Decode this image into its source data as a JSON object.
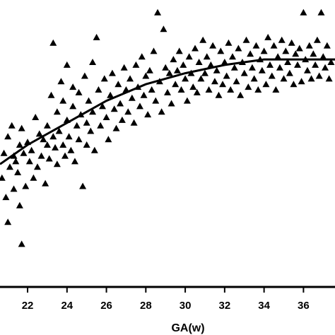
{
  "chart_data": {
    "type": "scatter",
    "xlabel": "GA(w)",
    "ylabel": "",
    "title": "",
    "xlim": [
      20.6,
      37.6
    ],
    "ylim": [
      0,
      1
    ],
    "x_ticks": [
      22,
      24,
      26,
      28,
      30,
      32,
      34,
      36
    ],
    "grid": false,
    "legend": "none",
    "marker": "triangle",
    "colors": {
      "marker": "#000000",
      "fit_line": "#000000",
      "axis": "#000000"
    },
    "series": [
      {
        "points": [
          [
            20.7,
            0.38
          ],
          [
            20.8,
            0.47
          ],
          [
            20.9,
            0.31
          ],
          [
            21.0,
            0.53
          ],
          [
            21.0,
            0.22
          ],
          [
            21.1,
            0.42
          ],
          [
            21.2,
            0.57
          ],
          [
            21.3,
            0.34
          ],
          [
            21.3,
            0.46
          ],
          [
            21.4,
            0.44
          ],
          [
            21.5,
            0.4
          ],
          [
            21.6,
            0.5
          ],
          [
            21.6,
            0.28
          ],
          [
            21.7,
            0.56
          ],
          [
            21.7,
            0.14
          ],
          [
            21.8,
            0.47
          ],
          [
            21.9,
            0.35
          ],
          [
            22.0,
            0.51
          ],
          [
            22.1,
            0.44
          ],
          [
            22.2,
            0.48
          ],
          [
            22.3,
            0.38
          ],
          [
            22.4,
            0.6
          ],
          [
            22.5,
            0.42
          ],
          [
            22.6,
            0.54
          ],
          [
            22.7,
            0.46
          ],
          [
            22.8,
            0.52
          ],
          [
            22.9,
            0.36
          ],
          [
            23.0,
            0.5
          ],
          [
            23.0,
            0.57
          ],
          [
            23.1,
            0.45
          ],
          [
            23.2,
            0.68
          ],
          [
            23.3,
            0.53
          ],
          [
            23.3,
            0.87
          ],
          [
            23.4,
            0.49
          ],
          [
            23.5,
            0.62
          ],
          [
            23.5,
            0.43
          ],
          [
            23.6,
            0.55
          ],
          [
            23.7,
            0.73
          ],
          [
            23.8,
            0.5
          ],
          [
            23.8,
            0.66
          ],
          [
            23.9,
            0.46
          ],
          [
            24.0,
            0.59
          ],
          [
            24.0,
            0.79
          ],
          [
            24.1,
            0.53
          ],
          [
            24.2,
            0.48
          ],
          [
            24.3,
            0.64
          ],
          [
            24.3,
            0.71
          ],
          [
            24.4,
            0.44
          ],
          [
            24.5,
            0.57
          ],
          [
            24.6,
            0.69
          ],
          [
            24.6,
            0.52
          ],
          [
            24.7,
            0.61
          ],
          [
            24.8,
            0.35
          ],
          [
            24.9,
            0.75
          ],
          [
            25.0,
            0.58
          ],
          [
            25.0,
            0.5
          ],
          [
            25.1,
            0.66
          ],
          [
            25.2,
            0.55
          ],
          [
            25.3,
            0.8
          ],
          [
            25.3,
            0.62
          ],
          [
            25.4,
            0.48
          ],
          [
            25.5,
            0.89
          ],
          [
            25.6,
            0.7
          ],
          [
            25.7,
            0.57
          ],
          [
            25.8,
            0.64
          ],
          [
            25.9,
            0.74
          ],
          [
            26.0,
            0.6
          ],
          [
            26.1,
            0.52
          ],
          [
            26.2,
            0.68
          ],
          [
            26.3,
            0.76
          ],
          [
            26.4,
            0.63
          ],
          [
            26.5,
            0.56
          ],
          [
            26.6,
            0.72
          ],
          [
            26.7,
            0.65
          ],
          [
            26.8,
            0.59
          ],
          [
            26.9,
            0.78
          ],
          [
            27.0,
            0.7
          ],
          [
            27.1,
            0.62
          ],
          [
            27.2,
            0.74
          ],
          [
            27.3,
            0.67
          ],
          [
            27.4,
            0.58
          ],
          [
            27.5,
            0.79
          ],
          [
            27.6,
            0.71
          ],
          [
            27.7,
            0.64
          ],
          [
            27.8,
            0.82
          ],
          [
            27.9,
            0.68
          ],
          [
            28.0,
            0.75
          ],
          [
            28.1,
            0.61
          ],
          [
            28.2,
            0.77
          ],
          [
            28.3,
            0.7
          ],
          [
            28.4,
            0.84
          ],
          [
            28.5,
            0.66
          ],
          [
            28.6,
            0.98
          ],
          [
            28.7,
            0.73
          ],
          [
            28.8,
            0.62
          ],
          [
            28.9,
            0.92
          ],
          [
            29.0,
            0.78
          ],
          [
            29.1,
            0.69
          ],
          [
            29.2,
            0.76
          ],
          [
            29.3,
            0.65
          ],
          [
            29.4,
            0.81
          ],
          [
            29.5,
            0.72
          ],
          [
            29.6,
            0.77
          ],
          [
            29.7,
            0.84
          ],
          [
            29.8,
            0.7
          ],
          [
            29.9,
            0.79
          ],
          [
            30.0,
            0.74
          ],
          [
            30.1,
            0.66
          ],
          [
            30.2,
            0.82
          ],
          [
            30.3,
            0.76
          ],
          [
            30.4,
            0.71
          ],
          [
            30.5,
            0.85
          ],
          [
            30.6,
            0.69
          ],
          [
            30.7,
            0.8
          ],
          [
            30.8,
            0.74
          ],
          [
            30.9,
            0.88
          ],
          [
            31.0,
            0.76
          ],
          [
            31.1,
            0.82
          ],
          [
            31.2,
            0.7
          ],
          [
            31.3,
            0.79
          ],
          [
            31.4,
            0.86
          ],
          [
            31.5,
            0.73
          ],
          [
            31.6,
            0.77
          ],
          [
            31.7,
            0.68
          ],
          [
            31.8,
            0.84
          ],
          [
            31.9,
            0.72
          ],
          [
            32.0,
            0.8
          ],
          [
            32.1,
            0.75
          ],
          [
            32.2,
            0.87
          ],
          [
            32.3,
            0.7
          ],
          [
            32.4,
            0.82
          ],
          [
            32.5,
            0.78
          ],
          [
            32.6,
            0.73
          ],
          [
            32.7,
            0.85
          ],
          [
            32.8,
            0.68
          ],
          [
            32.9,
            0.8
          ],
          [
            33.0,
            0.76
          ],
          [
            33.1,
            0.88
          ],
          [
            33.2,
            0.71
          ],
          [
            33.3,
            0.83
          ],
          [
            33.4,
            0.78
          ],
          [
            33.5,
            0.74
          ],
          [
            33.6,
            0.86
          ],
          [
            33.7,
            0.7
          ],
          [
            33.8,
            0.81
          ],
          [
            33.9,
            0.77
          ],
          [
            34.0,
            0.84
          ],
          [
            34.1,
            0.72
          ],
          [
            34.2,
            0.89
          ],
          [
            34.3,
            0.79
          ],
          [
            34.4,
            0.75
          ],
          [
            34.5,
            0.86
          ],
          [
            34.6,
            0.7
          ],
          [
            34.7,
            0.82
          ],
          [
            34.8,
            0.78
          ],
          [
            34.9,
            0.88
          ],
          [
            35.0,
            0.74
          ],
          [
            35.1,
            0.84
          ],
          [
            35.2,
            0.8
          ],
          [
            35.3,
            0.76
          ],
          [
            35.4,
            0.87
          ],
          [
            35.5,
            0.72
          ],
          [
            35.6,
            0.83
          ],
          [
            35.7,
            0.79
          ],
          [
            35.8,
            0.85
          ],
          [
            35.9,
            0.73
          ],
          [
            36.0,
            0.98
          ],
          [
            36.1,
            0.81
          ],
          [
            36.2,
            0.77
          ],
          [
            36.3,
            0.86
          ],
          [
            36.4,
            0.74
          ],
          [
            36.5,
            0.83
          ],
          [
            36.6,
            0.79
          ],
          [
            36.7,
            0.88
          ],
          [
            36.8,
            0.75
          ],
          [
            36.9,
            0.98
          ],
          [
            37.0,
            0.82
          ],
          [
            37.1,
            0.78
          ],
          [
            37.2,
            0.86
          ],
          [
            37.3,
            0.74
          ],
          [
            37.4,
            0.8
          ]
        ]
      }
    ],
    "fit_line": {
      "type": "quadratic",
      "points": [
        [
          20.6,
          0.43
        ],
        [
          22,
          0.5
        ],
        [
          24,
          0.58
        ],
        [
          26,
          0.66
        ],
        [
          28,
          0.72
        ],
        [
          30,
          0.76
        ],
        [
          32,
          0.79
        ],
        [
          34,
          0.81
        ],
        [
          36,
          0.81
        ],
        [
          37.6,
          0.81
        ]
      ]
    }
  }
}
